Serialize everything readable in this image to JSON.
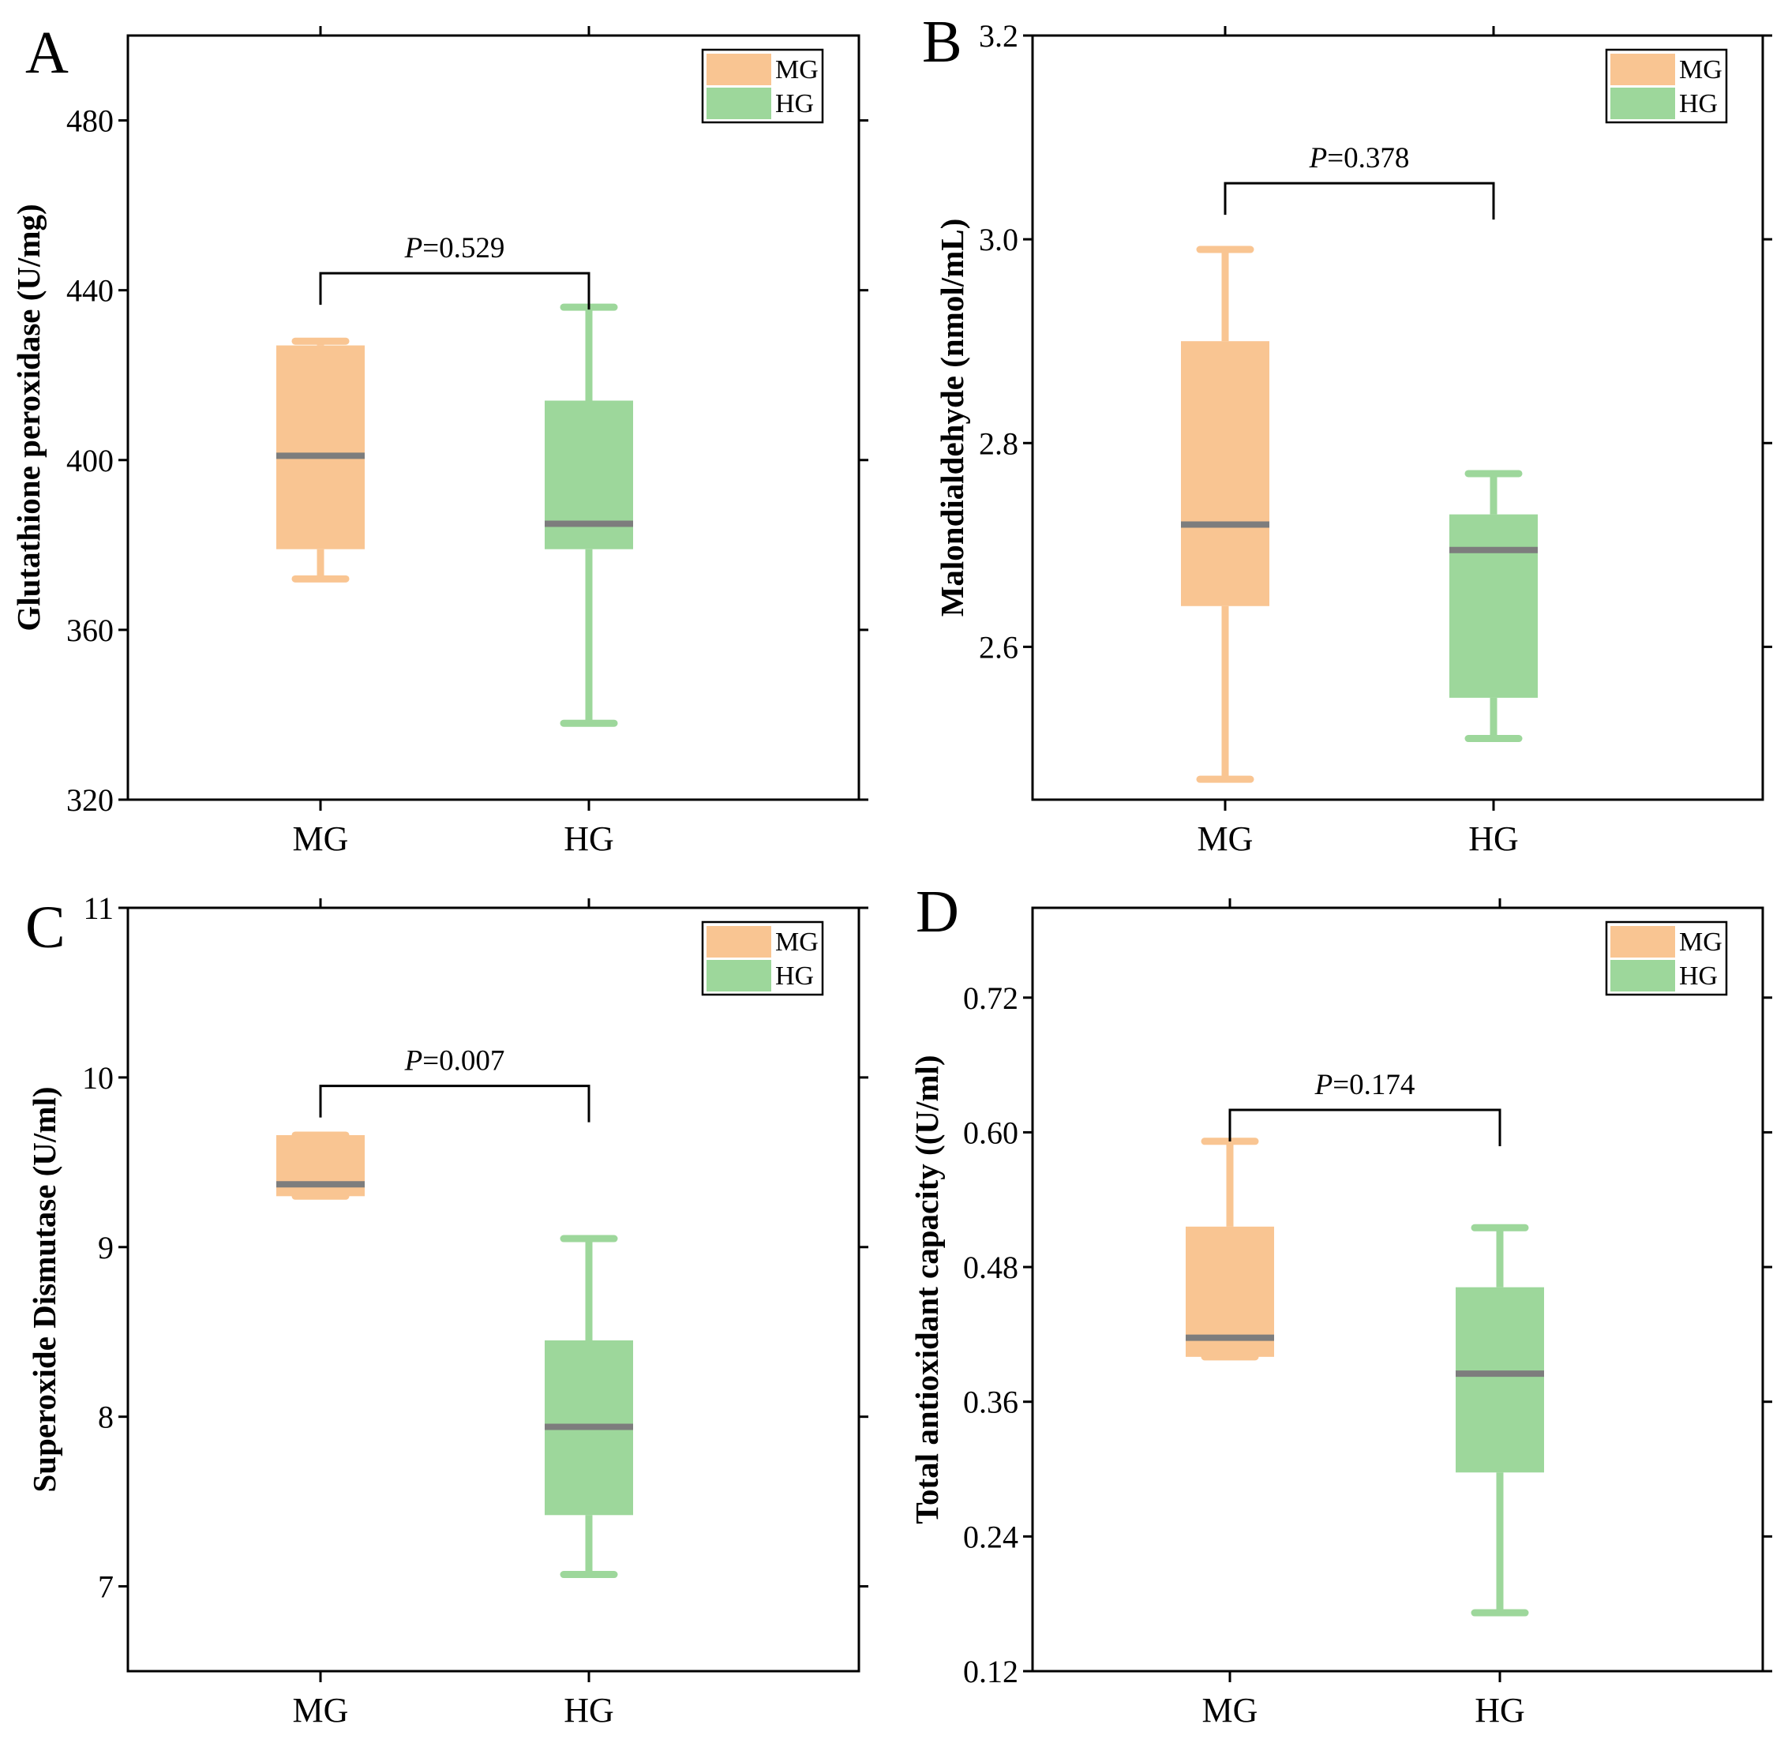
{
  "colors": {
    "MG": "#f9c592",
    "HG": "#9dd79b",
    "median": "#7d7d7d",
    "axis": "#000000"
  },
  "chart_data": [
    {
      "panel": "A",
      "type": "box",
      "ylabel": "Glutathione peroxidase (U/mg)",
      "ylim": [
        320,
        500
      ],
      "yticks": [
        {
          "value": 320,
          "label": "320"
        },
        {
          "value": 360,
          "label": "360"
        },
        {
          "value": 400,
          "label": "400"
        },
        {
          "value": 440,
          "label": "440"
        },
        {
          "value": 480,
          "label": "480"
        }
      ],
      "categories": [
        "MG",
        "HG"
      ],
      "legend": [
        "MG",
        "HG"
      ],
      "series": [
        {
          "name": "MG",
          "min": 372,
          "q1": 379,
          "median": 401,
          "q3": 427,
          "max": 428
        },
        {
          "name": "HG",
          "min": 338,
          "q1": 379,
          "median": 385,
          "q3": 414,
          "max": 436
        }
      ],
      "annotation": {
        "p_symbol": "P",
        "p_value": "=0.529",
        "bracket": 444
      }
    },
    {
      "panel": "B",
      "type": "box",
      "ylabel": "Malondialdehyde (nmol/mL)",
      "ylim": [
        2.45,
        3.2
      ],
      "yticks": [
        {
          "value": 2.6,
          "label": "2.6"
        },
        {
          "value": 2.8,
          "label": "2.8"
        },
        {
          "value": 3.0,
          "label": "3.0"
        },
        {
          "value": 3.2,
          "label": "3.2"
        }
      ],
      "categories": [
        "MG",
        "HG"
      ],
      "legend": [
        "MG",
        "HG"
      ],
      "series": [
        {
          "name": "MG",
          "min": 2.47,
          "q1": 2.64,
          "median": 2.72,
          "q3": 2.9,
          "max": 2.99
        },
        {
          "name": "HG",
          "min": 2.51,
          "q1": 2.55,
          "median": 2.695,
          "q3": 2.73,
          "max": 2.77
        }
      ],
      "annotation": {
        "p_symbol": "P",
        "p_value": "=0.378",
        "bracket": 3.055
      }
    },
    {
      "panel": "C",
      "type": "box",
      "ylabel": "Superoxide Dismutase (U/ml)",
      "ylim": [
        6.5,
        11
      ],
      "yticks": [
        {
          "value": 7,
          "label": "7"
        },
        {
          "value": 8,
          "label": "8"
        },
        {
          "value": 9,
          "label": "9"
        },
        {
          "value": 10,
          "label": "10"
        },
        {
          "value": 11,
          "label": "11"
        }
      ],
      "categories": [
        "MG",
        "HG"
      ],
      "legend": [
        "MG",
        "HG"
      ],
      "series": [
        {
          "name": "MG",
          "min": 9.3,
          "q1": 9.3,
          "median": 9.37,
          "q3": 9.66,
          "max": 9.66
        },
        {
          "name": "HG",
          "min": 7.07,
          "q1": 7.42,
          "median": 7.94,
          "q3": 8.45,
          "max": 9.05
        }
      ],
      "annotation": {
        "p_symbol": "P",
        "p_value": "=0.007",
        "bracket": 9.95
      }
    },
    {
      "panel": "D",
      "type": "box",
      "ylabel": "Total antioxidant capacity ((U/ml)",
      "ylim": [
        0.12,
        0.8
      ],
      "yticks": [
        {
          "value": 0.12,
          "label": "0.12"
        },
        {
          "value": 0.24,
          "label": "0.24"
        },
        {
          "value": 0.36,
          "label": "0.36"
        },
        {
          "value": 0.48,
          "label": "0.48"
        },
        {
          "value": 0.6,
          "label": "0.60"
        },
        {
          "value": 0.72,
          "label": "0.72"
        }
      ],
      "categories": [
        "MG",
        "HG"
      ],
      "legend": [
        "MG",
        "HG"
      ],
      "series": [
        {
          "name": "MG",
          "min": 0.4,
          "q1": 0.4,
          "median": 0.417,
          "q3": 0.516,
          "max": 0.592
        },
        {
          "name": "HG",
          "min": 0.172,
          "q1": 0.297,
          "median": 0.385,
          "q3": 0.462,
          "max": 0.515
        }
      ],
      "annotation": {
        "p_symbol": "P",
        "p_value": "=0.174",
        "bracket": 0.62
      }
    }
  ]
}
